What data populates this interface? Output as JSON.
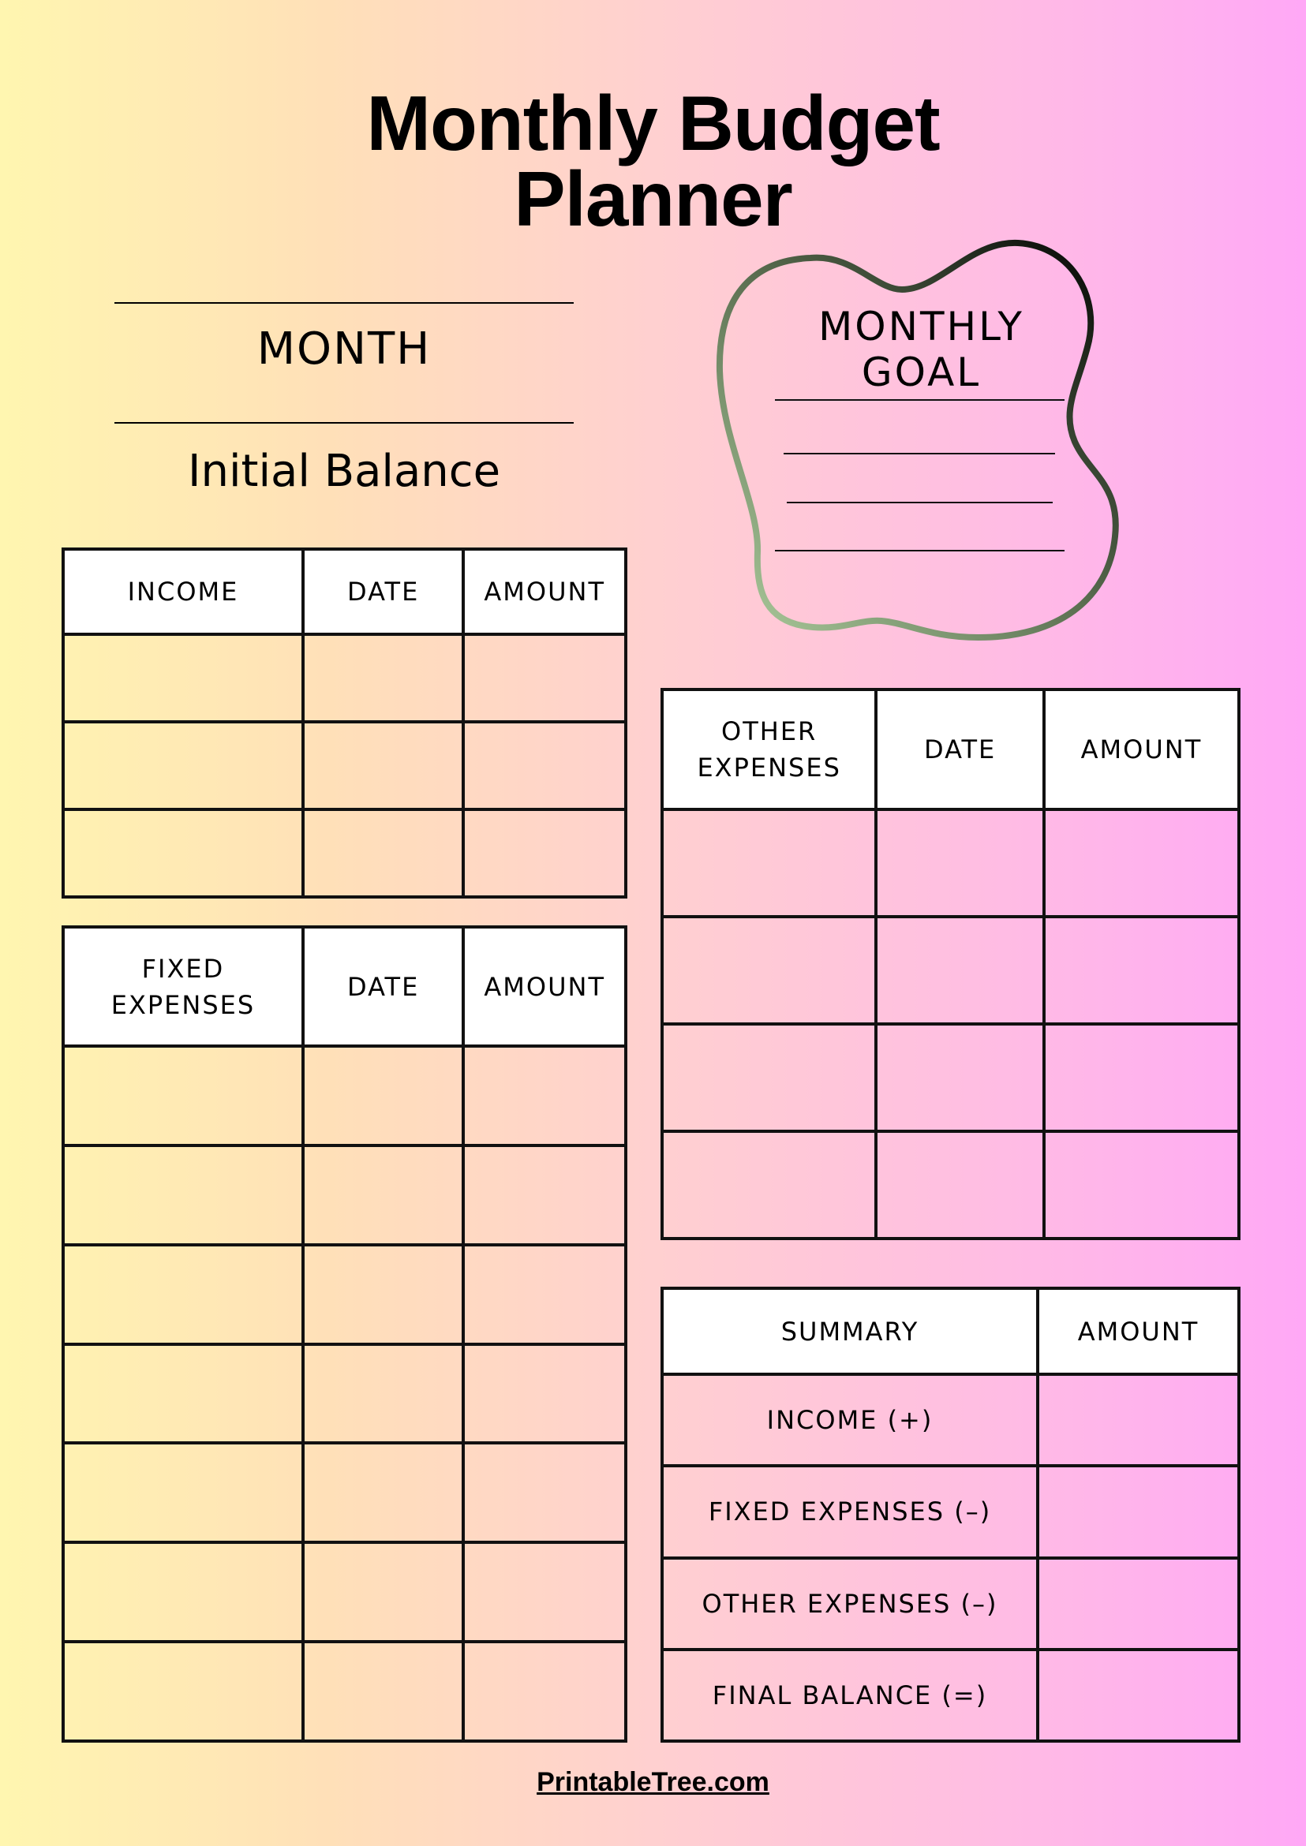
{
  "title": {
    "line1": "Monthly Budget",
    "line2": "Planner"
  },
  "month_label": "MONTH",
  "initial_balance_label": "Initial Balance",
  "monthly_goal": {
    "title": "MONTHLY GOAL",
    "blank_lines": 4,
    "stroke_colors": [
      "#a8c89a",
      "#000000"
    ]
  },
  "income_table": {
    "headers": [
      "INCOME",
      "DATE",
      "AMOUNT"
    ],
    "blank_rows": 3
  },
  "fixed_expenses_table": {
    "headers": [
      "FIXED\nEXPENSES",
      "DATE",
      "AMOUNT"
    ],
    "blank_rows": 7
  },
  "other_expenses_table": {
    "headers": [
      "OTHER\nEXPENSES",
      "DATE",
      "AMOUNT"
    ],
    "blank_rows": 4
  },
  "summary_table": {
    "headers": [
      "SUMMARY",
      "AMOUNT"
    ],
    "rows": [
      "INCOME (+)",
      "FIXED EXPENSES (–)",
      "OTHER EXPENSES (–)",
      "FINAL BALANCE (=)"
    ]
  },
  "footer": "PrintableTree.com",
  "colors": {
    "gradient_left": "#fff6b0",
    "gradient_mid": "#ffd0d0",
    "gradient_right": "#ffa8f6",
    "lines": "#111111"
  }
}
